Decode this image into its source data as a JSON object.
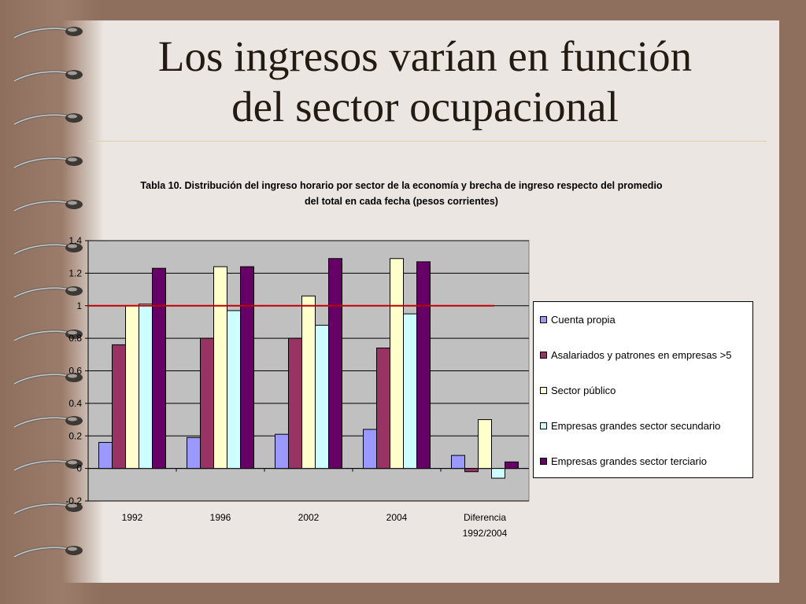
{
  "slide": {
    "title_line1": "Los ingresos varían en función",
    "title_line2": "del sector ocupacional"
  },
  "colors": {
    "background": "#8e6e5c",
    "paper": "#ece6e2",
    "plot_area": "#c0c0c0",
    "reference_line": "#c00000"
  },
  "chart_data": {
    "type": "bar",
    "title_line1": "Tabla 10. Distribución del ingreso horario por sector de la economía y brecha de ingreso respecto del promedio",
    "title_line2": "del total en cada fecha (pesos corrientes)",
    "categories": [
      "1992",
      "1996",
      "2002",
      "2004",
      "Diferencia|1992/2004"
    ],
    "ylim": [
      -0.2,
      1.4
    ],
    "yticks": [
      "-0.2",
      "0",
      "0.2",
      "0.4",
      "0.6",
      "0.8",
      "1",
      "1.2",
      "1.4"
    ],
    "grid": true,
    "legend_position": "right",
    "reference_line_value": 1.0,
    "series": [
      {
        "name": "Cuenta propia",
        "color": "#9999ff",
        "values": [
          0.16,
          0.19,
          0.21,
          0.24,
          0.08
        ]
      },
      {
        "name": "Asalariados y patrones en empresas >5",
        "color": "#993366",
        "values": [
          0.76,
          0.8,
          0.8,
          0.74,
          -0.02
        ]
      },
      {
        "name": "Sector público",
        "color": "#ffffcc",
        "values": [
          1.0,
          1.24,
          1.06,
          1.29,
          0.3
        ]
      },
      {
        "name": "Empresas grandes sector secundario",
        "color": "#ccffff",
        "values": [
          1.01,
          0.97,
          0.88,
          0.95,
          -0.06
        ]
      },
      {
        "name": "Empresas grandes sector terciario",
        "color": "#660066",
        "values": [
          1.23,
          1.24,
          1.29,
          1.27,
          0.04
        ]
      }
    ]
  }
}
